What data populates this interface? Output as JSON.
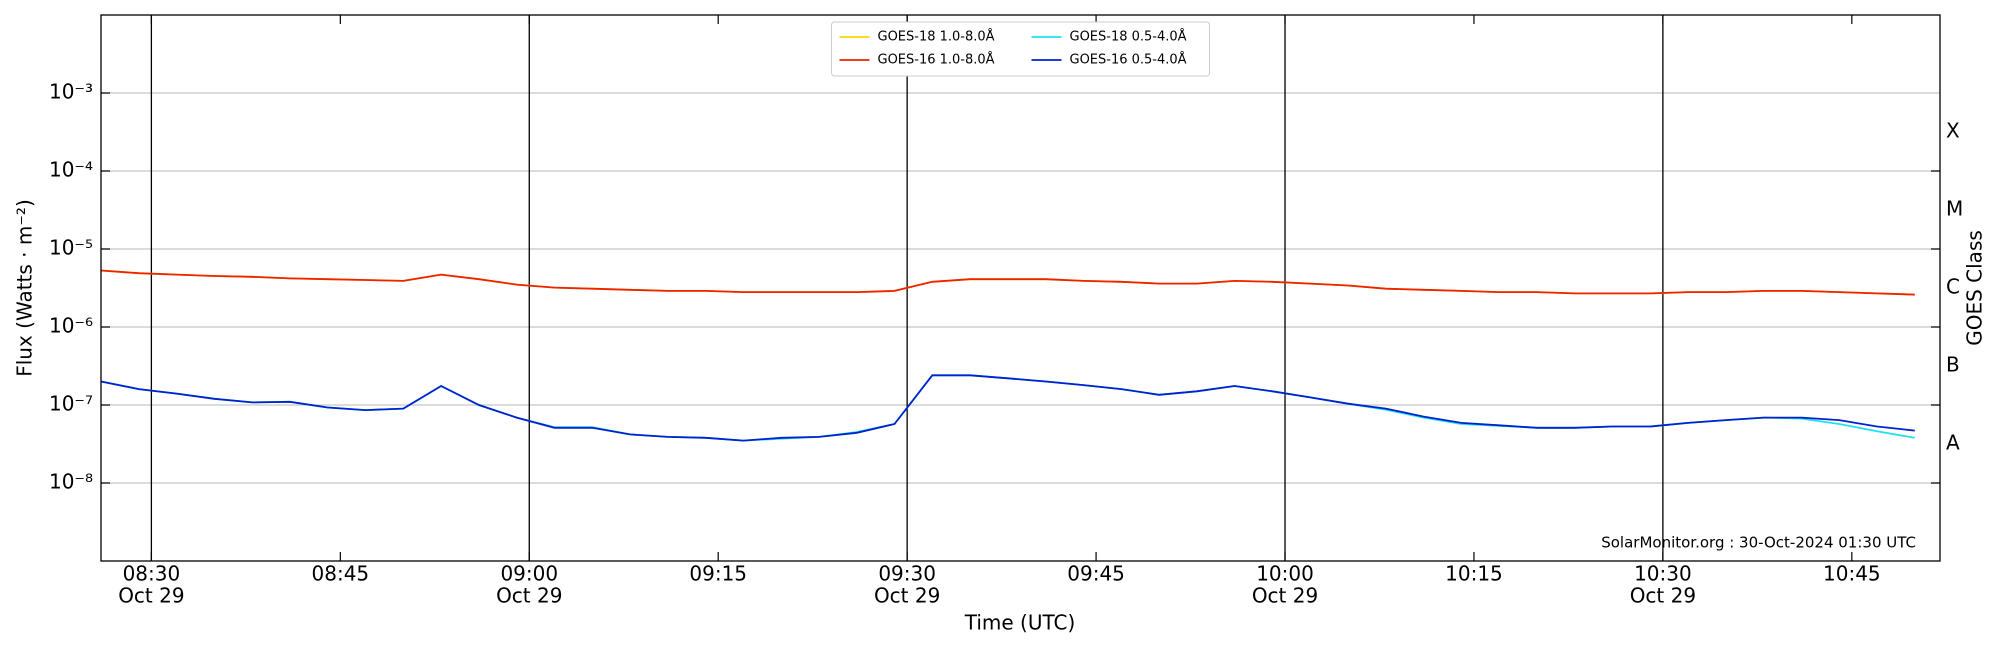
{
  "chart_data": {
    "type": "line",
    "xlabel": "Time (UTC)",
    "ylabel": "Flux (Watts · m⁻²)",
    "y2label": "GOES Class",
    "annotation": "SolarMonitor.org : 30-Oct-2024 01:30 UTC",
    "log_y": true,
    "grid": true,
    "legend_position": "upper center",
    "xlim": [
      "08:26",
      "10:52"
    ],
    "xticks": [
      "08:30",
      "08:45",
      "09:00",
      "09:15",
      "09:30",
      "09:45",
      "10:00",
      "10:15",
      "10:30",
      "10:45"
    ],
    "xtick_dates": [
      "Oct 29",
      null,
      "Oct 29",
      null,
      "Oct 29",
      null,
      "Oct 29",
      null,
      "Oct 29",
      null
    ],
    "ylim": [
      1e-09,
      0.01
    ],
    "yticks": [
      {
        "value": 1e-08,
        "label": "10⁻⁸"
      },
      {
        "value": 1e-07,
        "label": "10⁻⁷"
      },
      {
        "value": 1e-06,
        "label": "10⁻⁶"
      },
      {
        "value": 1e-05,
        "label": "10⁻⁵"
      },
      {
        "value": 0.0001,
        "label": "10⁻⁴"
      },
      {
        "value": 0.001,
        "label": "10⁻³"
      }
    ],
    "y2lim": [
      1e-09,
      0.01
    ],
    "y2ticks": [
      {
        "value": 1e-08,
        "label": "A"
      },
      {
        "value": 1e-07,
        "label": "B"
      },
      {
        "value": 1e-06,
        "label": "C"
      },
      {
        "value": 1e-05,
        "label": "M"
      },
      {
        "value": 0.0001,
        "label": "X"
      }
    ],
    "x": [
      "08:26",
      "08:29",
      "08:32",
      "08:35",
      "08:38",
      "08:41",
      "08:44",
      "08:47",
      "08:50",
      "08:53",
      "08:56",
      "08:59",
      "09:02",
      "09:05",
      "09:08",
      "09:11",
      "09:14",
      "09:17",
      "09:20",
      "09:23",
      "09:26",
      "09:29",
      "09:32",
      "09:35",
      "09:38",
      "09:41",
      "09:44",
      "09:47",
      "09:50",
      "09:53",
      "09:56",
      "09:59",
      "10:02",
      "10:05",
      "10:08",
      "10:11",
      "10:14",
      "10:17",
      "10:20",
      "10:23",
      "10:26",
      "10:29",
      "10:32",
      "10:35",
      "10:38",
      "10:41",
      "10:44",
      "10:47",
      "10:50"
    ],
    "series": [
      {
        "name": "GOES-18 1.0-8.0Å",
        "color": "#ffd700",
        "values": [
          5.3e-06,
          4.9e-06,
          4.7e-06,
          4.5e-06,
          4.4e-06,
          4.2e-06,
          4.1e-06,
          4e-06,
          3.9e-06,
          4.7e-06,
          4.1e-06,
          3.5e-06,
          3.2e-06,
          3.1e-06,
          3e-06,
          2.9e-06,
          2.9e-06,
          2.8e-06,
          2.8e-06,
          2.8e-06,
          2.8e-06,
          2.9e-06,
          3.8e-06,
          4.1e-06,
          4.1e-06,
          4.1e-06,
          3.9e-06,
          3.8e-06,
          3.6e-06,
          3.6e-06,
          3.9e-06,
          3.8e-06,
          3.6e-06,
          3.4e-06,
          3.1e-06,
          3e-06,
          2.9e-06,
          2.8e-06,
          2.8e-06,
          2.7e-06,
          2.7e-06,
          2.7e-06,
          2.8e-06,
          2.8e-06,
          2.9e-06,
          2.9e-06,
          2.8e-06,
          2.7e-06,
          2.6e-06
        ]
      },
      {
        "name": "GOES-16 1.0-8.0Å",
        "color": "#ee2200",
        "values": [
          5.3e-06,
          4.9e-06,
          4.7e-06,
          4.5e-06,
          4.4e-06,
          4.2e-06,
          4.1e-06,
          4e-06,
          3.9e-06,
          4.7e-06,
          4.1e-06,
          3.5e-06,
          3.2e-06,
          3.1e-06,
          3e-06,
          2.9e-06,
          2.9e-06,
          2.8e-06,
          2.8e-06,
          2.8e-06,
          2.8e-06,
          2.9e-06,
          3.8e-06,
          4.1e-06,
          4.1e-06,
          4.1e-06,
          3.9e-06,
          3.8e-06,
          3.6e-06,
          3.6e-06,
          3.9e-06,
          3.8e-06,
          3.6e-06,
          3.4e-06,
          3.1e-06,
          3e-06,
          2.9e-06,
          2.8e-06,
          2.8e-06,
          2.7e-06,
          2.7e-06,
          2.7e-06,
          2.8e-06,
          2.8e-06,
          2.9e-06,
          2.9e-06,
          2.8e-06,
          2.7e-06,
          2.6e-06
        ]
      },
      {
        "name": "GOES-18 0.5-4.0Å",
        "color": "#22e0f0",
        "values": [
          2e-07,
          1.6e-07,
          1.4e-07,
          1.2e-07,
          1.08e-07,
          1.1e-07,
          9.3e-08,
          8.6e-08,
          9e-08,
          1.75e-07,
          1e-07,
          6.9e-08,
          5.2e-08,
          5.2e-08,
          4.2e-08,
          3.9e-08,
          3.8e-08,
          3.5e-08,
          3.7e-08,
          3.9e-08,
          4.5e-08,
          5.7e-08,
          2.4e-07,
          2.4e-07,
          2.2e-07,
          2e-07,
          1.8e-07,
          1.6e-07,
          1.35e-07,
          1.5e-07,
          1.75e-07,
          1.5e-07,
          1.25e-07,
          1.04e-07,
          8.7e-08,
          6.9e-08,
          5.7e-08,
          5.4e-08,
          5.1e-08,
          5.1e-08,
          5.3e-08,
          5.3e-08,
          5.9e-08,
          6.4e-08,
          6.9e-08,
          6.7e-08,
          5.7e-08,
          4.6e-08,
          3.8e-08
        ]
      },
      {
        "name": "GOES-16 0.5-4.0Å",
        "color": "#0022cc",
        "values": [
          2e-07,
          1.6e-07,
          1.4e-07,
          1.2e-07,
          1.08e-07,
          1.1e-07,
          9.3e-08,
          8.6e-08,
          9e-08,
          1.75e-07,
          1e-07,
          6.9e-08,
          5.1e-08,
          5.1e-08,
          4.2e-08,
          3.9e-08,
          3.8e-08,
          3.5e-08,
          3.8e-08,
          3.9e-08,
          4.4e-08,
          5.7e-08,
          2.4e-07,
          2.4e-07,
          2.2e-07,
          2e-07,
          1.8e-07,
          1.6e-07,
          1.35e-07,
          1.5e-07,
          1.75e-07,
          1.5e-07,
          1.25e-07,
          1.04e-07,
          9e-08,
          7.1e-08,
          5.9e-08,
          5.5e-08,
          5.1e-08,
          5.1e-08,
          5.3e-08,
          5.3e-08,
          5.9e-08,
          6.4e-08,
          6.9e-08,
          6.9e-08,
          6.4e-08,
          5.3e-08,
          4.7e-08
        ]
      }
    ]
  }
}
